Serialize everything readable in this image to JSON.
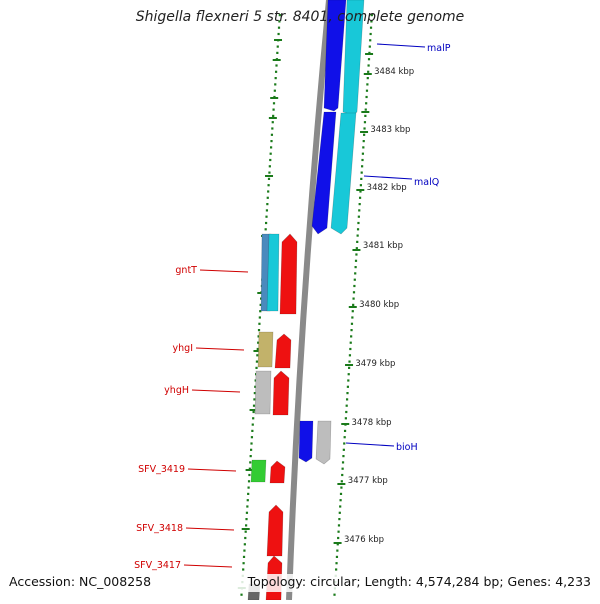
{
  "header": {
    "title": "Shigella flexneri 5 str. 8401, complete genome"
  },
  "footer": {
    "accession": "Accession: NC_008258",
    "summary": "Topology: circular; Length: 4,574,284 bp; Genes: 4,233"
  },
  "colors": {
    "forward_gene": "#1010e8",
    "forward_gene_alt": "#18c8d8",
    "reverse_gene": "#ee1111",
    "tick_green": "#1a7a1a",
    "backbone": "#8a8a8a",
    "grey_gene": "#bdbdbd",
    "olive_gene": "#c2b26a",
    "green_gene": "#33cc33",
    "steel_gene": "#4a8abd",
    "label_blue": "#0000c0",
    "label_red": "#d00000"
  },
  "scale": {
    "unit": "kbp",
    "ticks": [
      3484,
      3483,
      3482,
      3481,
      3480,
      3479,
      3478,
      3477,
      3476
    ]
  },
  "genes": {
    "forward_strand": [
      {
        "name": "malP",
        "color_key": "forward_gene"
      },
      {
        "name": "malQ",
        "color_key": "forward_gene"
      },
      {
        "name": "bioH",
        "color_key": "forward_gene"
      }
    ],
    "reverse_strand": [
      {
        "name": "gntT",
        "color_key": "reverse_gene"
      },
      {
        "name": "yhgI",
        "color_key": "reverse_gene"
      },
      {
        "name": "yhgH",
        "color_key": "reverse_gene"
      },
      {
        "name": "SFV_3419",
        "color_key": "reverse_gene"
      },
      {
        "name": "SFV_3418",
        "color_key": "reverse_gene"
      },
      {
        "name": "SFV_3417",
        "color_key": "reverse_gene"
      }
    ]
  }
}
